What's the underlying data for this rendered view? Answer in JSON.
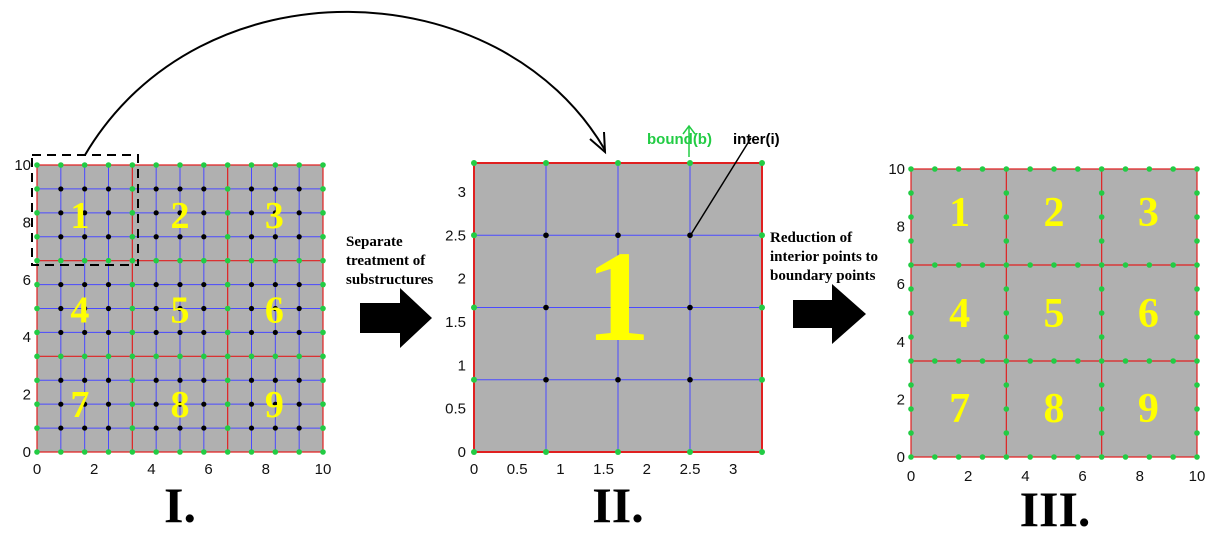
{
  "panels": [
    {
      "label": "I.",
      "x_ticks": [
        "0",
        "2",
        "4",
        "6",
        "8",
        "10"
      ],
      "y_ticks": [
        "0",
        "2",
        "4",
        "6",
        "8",
        "10"
      ],
      "region_numbers": [
        "1",
        "2",
        "3",
        "4",
        "5",
        "6",
        "7",
        "8",
        "9"
      ]
    },
    {
      "label": "II.",
      "x_ticks": [
        "0",
        "0.5",
        "1",
        "1.5",
        "2",
        "2.5",
        "3"
      ],
      "y_ticks": [
        "0",
        "0.5",
        "1",
        "1.5",
        "2",
        "2.5",
        "3"
      ],
      "region_numbers": [
        "1"
      ]
    },
    {
      "label": "III.",
      "x_ticks": [
        "0",
        "2",
        "4",
        "6",
        "8",
        "10"
      ],
      "y_ticks": [
        "0",
        "2",
        "4",
        "6",
        "8",
        "10"
      ],
      "region_numbers": [
        "1",
        "2",
        "3",
        "4",
        "5",
        "6",
        "7",
        "8",
        "9"
      ]
    }
  ],
  "arrow_captions": {
    "first": [
      "Separate",
      "treatment of",
      "substructures"
    ],
    "second": [
      "Reduction of",
      "interior points to",
      "boundary points"
    ]
  },
  "annotations": {
    "boundary": "bound(b)",
    "interior": "inter(i)"
  },
  "colors": {
    "fill": "#b0b0b0",
    "grid": "#4a4aff",
    "substructure_border": "#e02020",
    "boundary_point": "#22cc44",
    "interior_point": "#000000",
    "number": "#ffff00",
    "boundary_label": "#22cc44"
  }
}
